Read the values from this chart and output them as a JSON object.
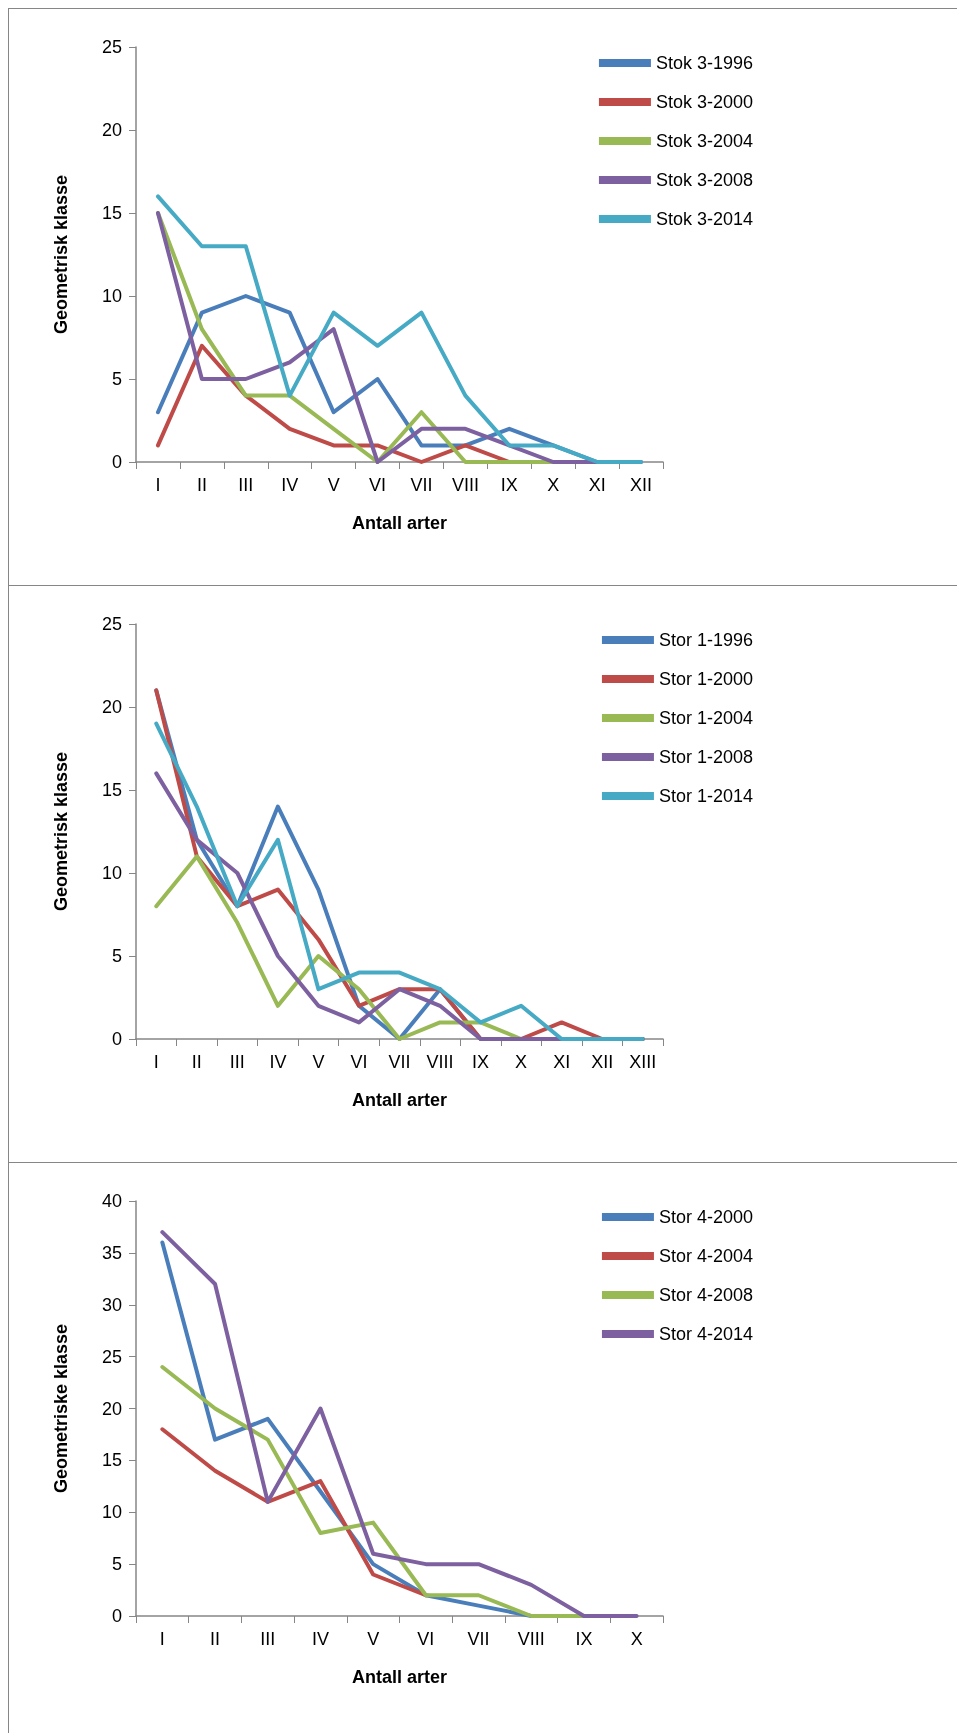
{
  "chart_data": [
    {
      "type": "line",
      "xlabel": "Antall arter",
      "ylabel": "Geometrisk klasse",
      "categories": [
        "I",
        "II",
        "III",
        "IV",
        "V",
        "VI",
        "VII",
        "VIII",
        "IX",
        "X",
        "XI",
        "XII"
      ],
      "ylim": [
        0,
        25
      ],
      "yticks": [
        0,
        5,
        10,
        15,
        20,
        25
      ],
      "legend": "top right",
      "grid": false,
      "marker": "none",
      "line_style": "solid",
      "series": [
        {
          "name": "Stok 3-1996",
          "color": "#4a7ebb",
          "values": [
            3,
            9,
            10,
            9,
            3,
            5,
            1,
            1,
            2,
            1,
            0,
            0
          ]
        },
        {
          "name": "Stok 3-2000",
          "color": "#be4b48",
          "values": [
            1,
            7,
            4,
            2,
            1,
            1,
            0,
            1,
            0,
            null,
            null,
            null
          ]
        },
        {
          "name": "Stok 3-2004",
          "color": "#98b954",
          "values": [
            15,
            8,
            4,
            4,
            2,
            0,
            3,
            0,
            0,
            0,
            null,
            null
          ]
        },
        {
          "name": "Stok 3-2008",
          "color": "#7d60a0",
          "values": [
            15,
            5,
            5,
            6,
            8,
            0,
            2,
            2,
            1,
            0,
            0,
            null
          ]
        },
        {
          "name": "Stok 3-2014",
          "color": "#46aac5",
          "values": [
            16,
            13,
            13,
            4,
            9,
            7,
            9,
            4,
            1,
            1,
            0,
            0
          ]
        }
      ]
    },
    {
      "type": "line",
      "xlabel": "Antall arter",
      "ylabel": "Geometrisk klasse",
      "categories": [
        "I",
        "II",
        "III",
        "IV",
        "V",
        "VI",
        "VII",
        "VIII",
        "IX",
        "X",
        "XI",
        "XII",
        "XIII"
      ],
      "ylim": [
        0,
        25
      ],
      "yticks": [
        0,
        5,
        10,
        15,
        20,
        25
      ],
      "legend": "top right",
      "grid": false,
      "marker": "none",
      "line_style": "solid",
      "series": [
        {
          "name": "Stor 1-1996",
          "color": "#4a7ebb",
          "values": [
            21,
            12,
            8,
            14,
            9,
            2,
            0,
            3,
            0,
            0,
            0,
            0,
            0
          ]
        },
        {
          "name": "Stor 1-2000",
          "color": "#be4b48",
          "values": [
            21,
            11,
            8,
            9,
            6,
            2,
            3,
            3,
            0,
            0,
            1,
            0,
            0
          ]
        },
        {
          "name": "Stor 1-2004",
          "color": "#98b954",
          "values": [
            8,
            11,
            7,
            2,
            5,
            3,
            0,
            1,
            1,
            0,
            null,
            null,
            null
          ]
        },
        {
          "name": "Stor 1-2008",
          "color": "#7d60a0",
          "values": [
            16,
            12,
            10,
            5,
            2,
            1,
            3,
            2,
            0,
            0,
            0,
            null,
            null
          ]
        },
        {
          "name": "Stor 1-2014",
          "color": "#46aac5",
          "values": [
            19,
            14,
            8,
            12,
            3,
            4,
            4,
            3,
            1,
            2,
            0,
            0,
            0
          ]
        }
      ]
    },
    {
      "type": "line",
      "xlabel": "Antall arter",
      "ylabel": "Geometriske klasse",
      "categories": [
        "I",
        "II",
        "III",
        "IV",
        "V",
        "VI",
        "VII",
        "VIII",
        "IX",
        "X"
      ],
      "ylim": [
        0,
        40
      ],
      "yticks": [
        0,
        5,
        10,
        15,
        20,
        25,
        30,
        35,
        40
      ],
      "legend": "top right",
      "grid": false,
      "marker": "none",
      "line_style": "solid",
      "series": [
        {
          "name": "Stor 4-2000",
          "color": "#4a7ebb",
          "values": [
            36,
            17,
            19,
            12,
            5,
            2,
            1,
            0,
            null,
            null
          ]
        },
        {
          "name": "Stor 4-2004",
          "color": "#be4b48",
          "values": [
            18,
            14,
            11,
            13,
            4,
            2,
            null,
            null,
            null,
            null
          ]
        },
        {
          "name": "Stor 4-2008",
          "color": "#98b954",
          "values": [
            24,
            20,
            17,
            8,
            9,
            2,
            2,
            0,
            0,
            null
          ]
        },
        {
          "name": "Stor 4-2014",
          "color": "#7d60a0",
          "values": [
            37,
            32,
            11,
            20,
            6,
            5,
            5,
            3,
            0,
            0
          ]
        }
      ]
    }
  ]
}
